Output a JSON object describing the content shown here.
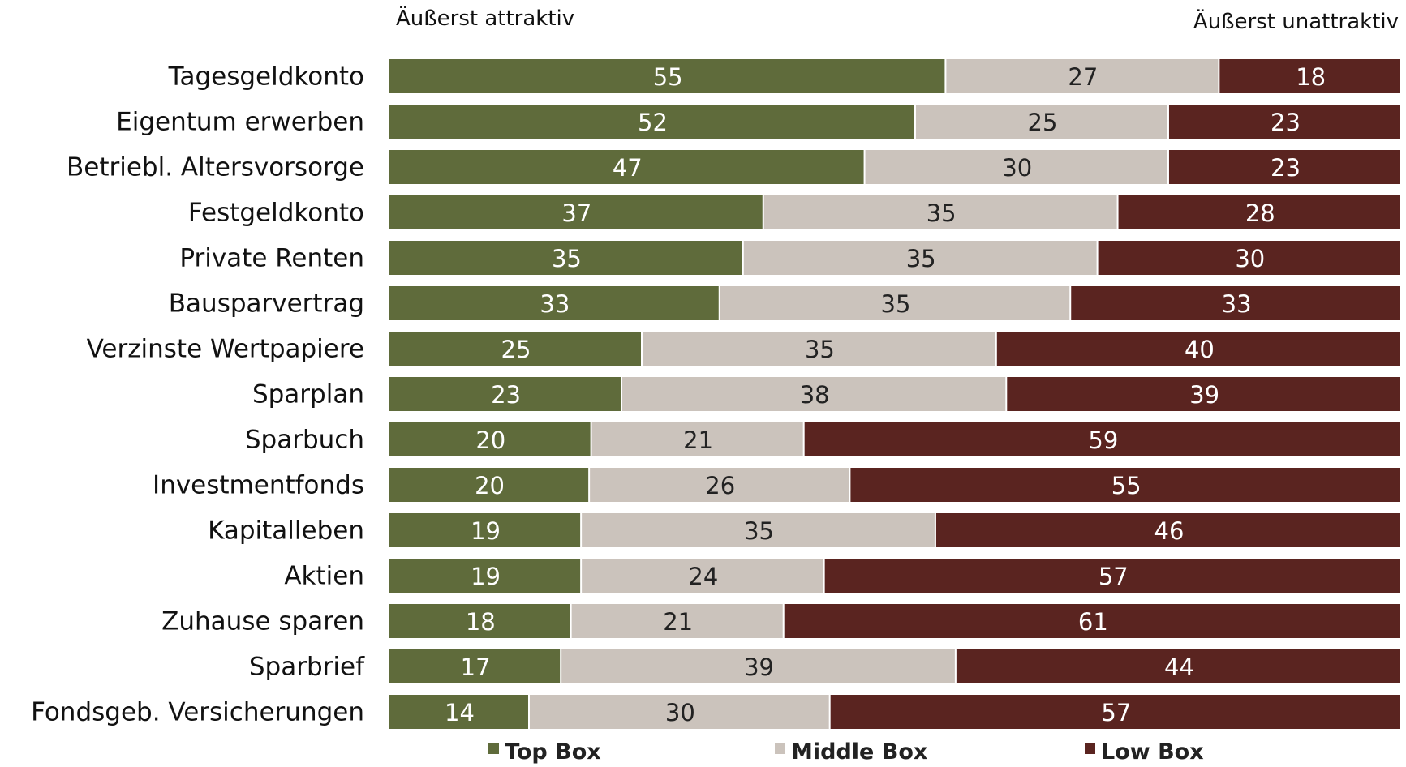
{
  "chart_data": {
    "type": "bar",
    "orientation": "horizontal",
    "stacked": true,
    "left_end_label": "Äußerst attraktiv",
    "right_end_label": "Äußerst unattraktiv",
    "categories": [
      "Tagesgeldkonto",
      "Eigentum erwerben",
      "Betriebl. Altersvorsorge",
      "Festgeldkonto",
      "Private Renten",
      "Bausparvertrag",
      "Verzinste Wertpapiere",
      "Sparplan",
      "Sparbuch",
      "Investmentfonds",
      "Kapitalleben",
      "Aktien",
      "Zuhause sparen",
      "Sparbrief",
      "Fondsgeb. Versicherungen"
    ],
    "series": [
      {
        "name": "Top Box",
        "color": "#5f6b3b",
        "text_color": "#ffffff",
        "values": [
          55,
          52,
          47,
          37,
          35,
          33,
          25,
          23,
          20,
          20,
          19,
          19,
          18,
          17,
          14
        ]
      },
      {
        "name": "Middle Box",
        "color": "#cbc3bc",
        "text_color": "#222222",
        "values": [
          27,
          25,
          30,
          35,
          35,
          35,
          35,
          38,
          21,
          26,
          35,
          24,
          21,
          39,
          30
        ]
      },
      {
        "name": "Low Box",
        "color": "#5a2420",
        "text_color": "#ffffff",
        "values": [
          18,
          23,
          23,
          28,
          30,
          33,
          40,
          39,
          59,
          55,
          46,
          57,
          61,
          44,
          57
        ]
      }
    ],
    "legend_position": "bottom",
    "grid": false
  }
}
